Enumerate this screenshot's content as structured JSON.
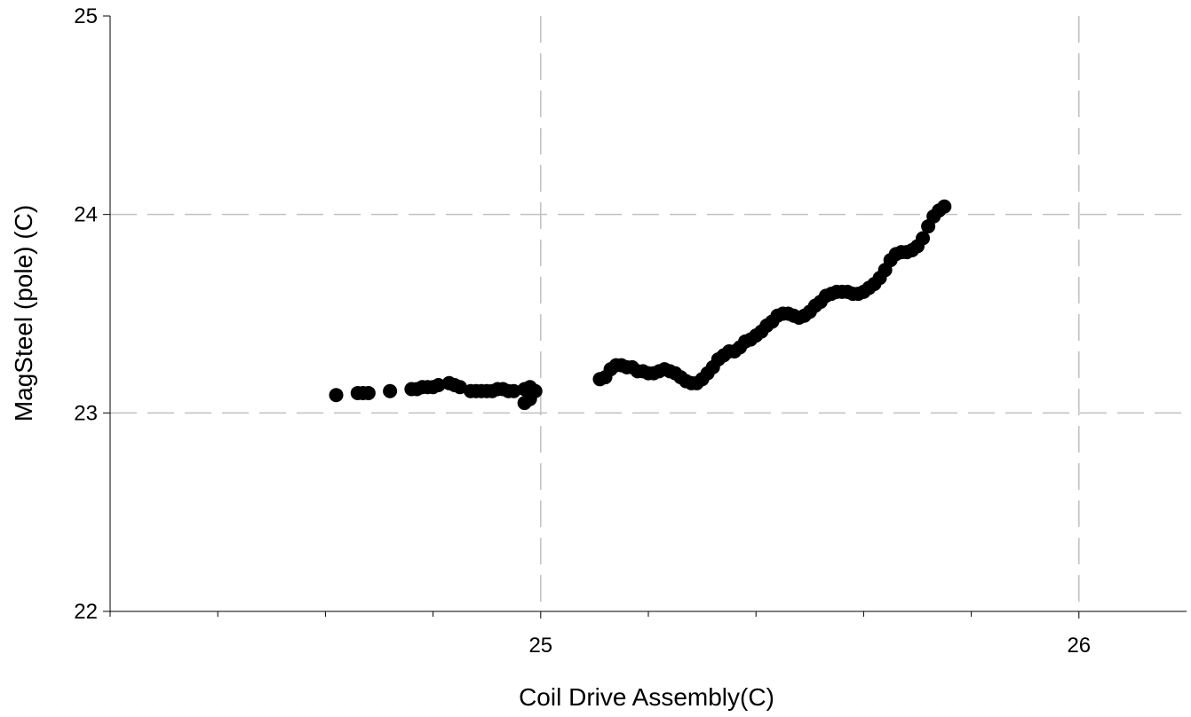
{
  "chart_data": {
    "type": "scatter",
    "title": "",
    "xlabel": "Coil Drive Assembly(C)",
    "ylabel": "MagSteel (pole) (C)",
    "xlim": [
      24.2,
      26.2
    ],
    "ylim": [
      22,
      25
    ],
    "x_ticks": [
      25,
      26
    ],
    "x_tick_labels": [
      "25",
      "26"
    ],
    "x_minor_ticks": [
      24.2,
      24.4,
      24.6,
      24.8,
      25.2,
      25.4,
      25.6,
      25.8
    ],
    "y_ticks": [
      22,
      23,
      24,
      25
    ],
    "y_tick_labels": [
      "22",
      "23",
      "24",
      "25"
    ],
    "grid": true,
    "grid_style": "dashed",
    "grid_color": "#c0c0c0",
    "marker_color": "#000000",
    "series": [
      {
        "points": [
          [
            24.62,
            23.09
          ],
          [
            24.66,
            23.1
          ],
          [
            24.67,
            23.1
          ],
          [
            24.68,
            23.1
          ],
          [
            24.72,
            23.11
          ],
          [
            24.76,
            23.12
          ],
          [
            24.77,
            23.12
          ],
          [
            24.78,
            23.13
          ],
          [
            24.79,
            23.13
          ],
          [
            24.8,
            23.13
          ],
          [
            24.81,
            23.14
          ],
          [
            24.83,
            23.15
          ],
          [
            24.84,
            23.14
          ],
          [
            24.85,
            23.13
          ],
          [
            24.87,
            23.11
          ],
          [
            24.88,
            23.11
          ],
          [
            24.89,
            23.11
          ],
          [
            24.9,
            23.11
          ],
          [
            24.91,
            23.11
          ],
          [
            24.92,
            23.12
          ],
          [
            24.93,
            23.12
          ],
          [
            24.94,
            23.11
          ],
          [
            24.95,
            23.11
          ],
          [
            24.97,
            23.12
          ],
          [
            24.97,
            23.05
          ],
          [
            24.98,
            23.07
          ],
          [
            24.98,
            23.1
          ],
          [
            24.98,
            23.13
          ],
          [
            24.99,
            23.11
          ],
          [
            25.11,
            23.17
          ],
          [
            25.12,
            23.18
          ],
          [
            25.13,
            23.22
          ],
          [
            25.14,
            23.24
          ],
          [
            25.15,
            23.24
          ],
          [
            25.16,
            23.23
          ],
          [
            25.17,
            23.23
          ],
          [
            25.18,
            23.21
          ],
          [
            25.19,
            23.21
          ],
          [
            25.2,
            23.2
          ],
          [
            25.21,
            23.2
          ],
          [
            25.22,
            23.21
          ],
          [
            25.23,
            23.22
          ],
          [
            25.24,
            23.21
          ],
          [
            25.25,
            23.2
          ],
          [
            25.26,
            23.18
          ],
          [
            25.27,
            23.16
          ],
          [
            25.28,
            23.15
          ],
          [
            25.29,
            23.15
          ],
          [
            25.3,
            23.17
          ],
          [
            25.31,
            23.2
          ],
          [
            25.32,
            23.23
          ],
          [
            25.33,
            23.27
          ],
          [
            25.34,
            23.29
          ],
          [
            25.35,
            23.31
          ],
          [
            25.36,
            23.31
          ],
          [
            25.37,
            23.33
          ],
          [
            25.38,
            23.36
          ],
          [
            25.39,
            23.37
          ],
          [
            25.4,
            23.39
          ],
          [
            25.41,
            23.41
          ],
          [
            25.42,
            23.44
          ],
          [
            25.43,
            23.46
          ],
          [
            25.44,
            23.49
          ],
          [
            25.45,
            23.5
          ],
          [
            25.46,
            23.5
          ],
          [
            25.47,
            23.49
          ],
          [
            25.48,
            23.48
          ],
          [
            25.49,
            23.49
          ],
          [
            25.5,
            23.51
          ],
          [
            25.51,
            23.54
          ],
          [
            25.52,
            23.56
          ],
          [
            25.53,
            23.59
          ],
          [
            25.54,
            23.6
          ],
          [
            25.55,
            23.61
          ],
          [
            25.56,
            23.61
          ],
          [
            25.57,
            23.61
          ],
          [
            25.58,
            23.6
          ],
          [
            25.59,
            23.6
          ],
          [
            25.6,
            23.61
          ],
          [
            25.61,
            23.63
          ],
          [
            25.62,
            23.65
          ],
          [
            25.63,
            23.68
          ],
          [
            25.64,
            23.72
          ],
          [
            25.65,
            23.77
          ],
          [
            25.66,
            23.8
          ],
          [
            25.67,
            23.81
          ],
          [
            25.68,
            23.81
          ],
          [
            25.69,
            23.82
          ],
          [
            25.7,
            23.84
          ],
          [
            25.71,
            23.88
          ],
          [
            25.72,
            23.94
          ],
          [
            25.73,
            23.99
          ],
          [
            25.74,
            24.02
          ],
          [
            25.75,
            24.04
          ]
        ]
      }
    ]
  }
}
